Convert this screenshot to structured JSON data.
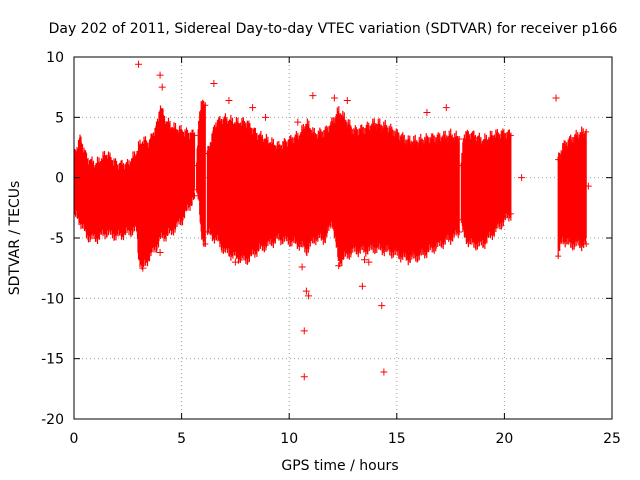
{
  "chart_data": {
    "type": "scatter",
    "title": "Day 202 of 2011, Sidereal Day-to-day VTEC variation (SDTVAR) for receiver p166",
    "xlabel": "GPS time / hours",
    "ylabel": "SDTVAR / TECUs",
    "xlim": [
      0,
      25
    ],
    "ylim": [
      -20,
      10
    ],
    "xticks": [
      0,
      5,
      10,
      15,
      20,
      25
    ],
    "yticks": [
      -20,
      -15,
      -10,
      -5,
      0,
      5,
      10
    ],
    "xtick_labels": [
      "0",
      "5",
      "10",
      "15",
      "20",
      "25"
    ],
    "ytick_labels": [
      "-20",
      "-15",
      "-10",
      "-5",
      "0",
      "5",
      "10"
    ],
    "grid": true,
    "legend": "none",
    "marker": "plus",
    "series_color": "#ff0000",
    "band_envelope": {
      "note": "dense band of points: lower and upper extent (TECU) vs GPS hour",
      "segments": [
        [
          [
            0.0,
            -3.0,
            1.8
          ],
          [
            0.3,
            -3.6,
            3.2
          ],
          [
            0.6,
            -4.8,
            1.5
          ],
          [
            1.0,
            -5.0,
            1.0
          ],
          [
            1.5,
            -4.5,
            1.9
          ],
          [
            2.0,
            -4.8,
            1.0
          ],
          [
            2.5,
            -4.5,
            1.0
          ],
          [
            2.9,
            -4.2,
            2.0
          ],
          [
            3.0,
            -6.5,
            2.5
          ],
          [
            3.2,
            -7.5,
            3.0
          ],
          [
            3.5,
            -6.5,
            2.8
          ],
          [
            3.9,
            -5.5,
            4.5
          ],
          [
            4.0,
            -5.0,
            6.0
          ],
          [
            4.2,
            -4.8,
            4.8
          ],
          [
            4.5,
            -4.5,
            4.2
          ],
          [
            5.0,
            -3.5,
            3.8
          ],
          [
            5.3,
            -2.5,
            3.6
          ],
          [
            5.6,
            -1.5,
            3.5
          ]
        ],
        [
          [
            5.7,
            -1.0,
            1.0
          ],
          [
            5.8,
            -2.0,
            5.0
          ],
          [
            5.9,
            -4.5,
            6.0
          ],
          [
            6.1,
            -5.5,
            6.0
          ]
        ],
        [
          [
            6.2,
            -4.5,
            2.0
          ],
          [
            6.6,
            -5.0,
            4.5
          ],
          [
            7.0,
            -6.0,
            4.8
          ],
          [
            7.5,
            -6.5,
            4.5
          ],
          [
            8.0,
            -6.8,
            4.5
          ],
          [
            8.5,
            -6.0,
            3.5
          ],
          [
            9.0,
            -5.5,
            3.0
          ],
          [
            9.5,
            -5.0,
            2.5
          ],
          [
            10.0,
            -5.2,
            3.0
          ],
          [
            10.5,
            -5.5,
            3.5
          ],
          [
            10.8,
            -6.0,
            4.5
          ],
          [
            11.2,
            -5.0,
            3.5
          ],
          [
            11.7,
            -5.0,
            3.8
          ],
          [
            12.0,
            -3.5,
            4.5
          ],
          [
            12.3,
            -7.0,
            5.5
          ],
          [
            12.6,
            -6.5,
            4.8
          ],
          [
            13.0,
            -6.0,
            3.8
          ],
          [
            13.5,
            -6.0,
            4.0
          ],
          [
            14.0,
            -5.8,
            4.5
          ],
          [
            14.5,
            -6.0,
            4.2
          ],
          [
            15.0,
            -6.3,
            3.6
          ],
          [
            15.5,
            -6.7,
            3.0
          ],
          [
            16.0,
            -6.5,
            3.0
          ],
          [
            16.5,
            -6.0,
            3.2
          ],
          [
            17.0,
            -5.5,
            3.3
          ],
          [
            17.5,
            -5.0,
            3.5
          ],
          [
            17.9,
            -4.5,
            3.2
          ]
        ],
        [
          [
            18.0,
            -3.5,
            1.0
          ],
          [
            18.1,
            -4.8,
            3.5
          ],
          [
            18.5,
            -5.5,
            3.5
          ],
          [
            19.0,
            -5.5,
            3.0
          ],
          [
            19.5,
            -4.5,
            3.5
          ],
          [
            20.0,
            -3.5,
            3.6
          ],
          [
            20.3,
            -3.0,
            3.5
          ]
        ],
        [
          [
            22.5,
            -6.5,
            1.5
          ],
          [
            22.7,
            -5.0,
            2.5
          ],
          [
            23.0,
            -5.5,
            3.0
          ],
          [
            23.5,
            -5.5,
            3.6
          ],
          [
            23.8,
            -5.5,
            3.8
          ]
        ]
      ]
    },
    "outliers": [
      [
        3.0,
        9.4
      ],
      [
        4.0,
        8.5
      ],
      [
        4.1,
        7.5
      ],
      [
        6.5,
        7.8
      ],
      [
        7.2,
        6.4
      ],
      [
        8.3,
        5.8
      ],
      [
        8.9,
        5.0
      ],
      [
        10.4,
        4.6
      ],
      [
        11.1,
        6.8
      ],
      [
        12.1,
        6.6
      ],
      [
        12.7,
        6.4
      ],
      [
        16.4,
        5.4
      ],
      [
        17.3,
        5.8
      ],
      [
        20.8,
        0.0
      ],
      [
        22.4,
        6.6
      ],
      [
        23.9,
        -0.7
      ],
      [
        10.6,
        -7.4
      ],
      [
        10.8,
        -9.4
      ],
      [
        10.9,
        -9.8
      ],
      [
        10.7,
        -12.7
      ],
      [
        10.7,
        -16.5
      ],
      [
        13.4,
        -9.0
      ],
      [
        14.3,
        -10.6
      ],
      [
        14.4,
        -16.1
      ],
      [
        13.7,
        -7.0
      ],
      [
        3.2,
        -7.5
      ],
      [
        4.0,
        -6.2
      ],
      [
        7.5,
        -7.0
      ],
      [
        12.3,
        -7.3
      ],
      [
        13.5,
        -6.8
      ]
    ]
  }
}
